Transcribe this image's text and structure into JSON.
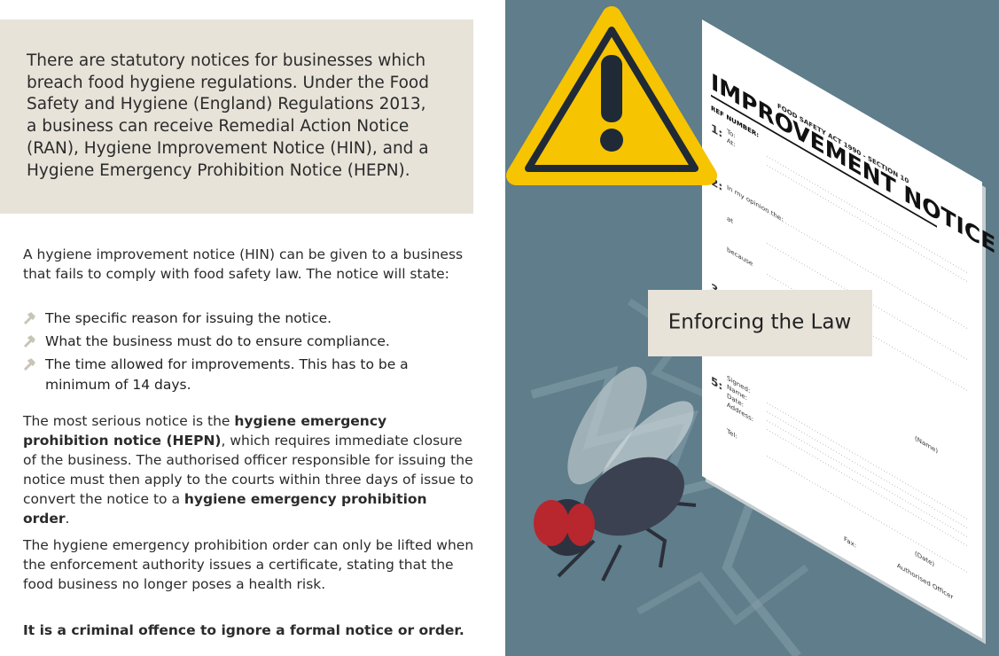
{
  "intro": "There are statutory notices for businesses which breach food hygiene regulations. Under the Food Safety and Hygiene (England) Regulations 2013, a business can receive Remedial Action Notice (RAN), Hygiene Improvement Notice (HIN), and a Hygiene Emergency Prohibition Notice (HEPN).",
  "body": {
    "lead": "A hygiene improvement notice (HIN) can be given to a business that fails to comply with food safety law. The notice will state:",
    "bullets": [
      "The specific reason for issuing the notice.",
      "What the business must do to ensure compliance.",
      "The time allowed for improvements. This has to be a minimum of 14 days."
    ],
    "serious": [
      "The most serious notice is the ",
      "hygiene emergency prohibition notice (HEPN)",
      ", which requires immediate closure of the business. The authorised officer responsible for issuing the notice must then apply to the courts within three days of issue to convert the notice to a ",
      "hygiene emergency prohibition order",
      "."
    ],
    "order": "The hygiene emergency prohibition order can only be lifted when the enforcement authority issues a certificate, stating that the food business no longer poses a health risk.",
    "warning": "It is a criminal offence to ignore a formal notice or order."
  },
  "illustration": {
    "caption": "Enforcing the Law",
    "notice": {
      "act": "FOOD SAFETY ACT 1990 - SECTION 10",
      "title": "IMPROVEMENT NOTICE",
      "ref": "REF NUMBER:",
      "fields": [
        "1:",
        "To:",
        "At:",
        "2:",
        "In my opinion the:",
        "at",
        "because",
        "3:",
        "(Name)",
        "5:",
        "Signed:",
        "Name:",
        "Date:",
        "Address:",
        "Tel:",
        "(Date)",
        "Authorised Officer",
        "Fax:"
      ]
    }
  }
}
